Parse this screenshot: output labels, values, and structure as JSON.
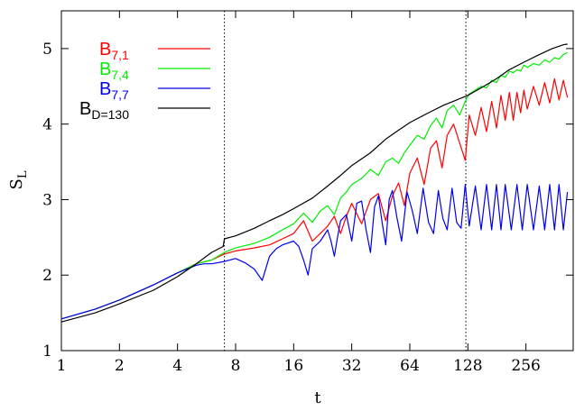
{
  "chart_data": {
    "type": "line",
    "title": "",
    "xlabel": "t",
    "ylabel_main": "S",
    "ylabel_sub": "L",
    "xscale": "log2",
    "xlim": [
      1,
      450
    ],
    "ylim": [
      1,
      5.5
    ],
    "xticks": [
      1,
      2,
      4,
      8,
      16,
      32,
      64,
      128,
      256
    ],
    "xtick_labels": [
      "1",
      "2",
      "4",
      "8",
      "16",
      "32",
      "64",
      "128",
      "256"
    ],
    "yticks": [
      1,
      2,
      3,
      4,
      5
    ],
    "ytick_labels": [
      "1",
      "2",
      "3",
      "4",
      "5"
    ],
    "vlines": [
      7,
      125
    ],
    "grid": false,
    "legend_position": "top-left",
    "series": [
      {
        "label_main": "B",
        "label_sub": "7,1",
        "color": "#ff0000",
        "x": [
          1,
          1.5,
          2,
          3,
          4,
          5,
          6,
          7,
          8,
          10,
          12,
          14,
          16,
          18,
          20,
          22,
          24,
          26,
          28,
          30,
          32,
          36,
          40,
          44,
          48,
          52,
          56,
          60,
          64,
          70,
          76,
          82,
          88,
          94,
          100,
          108,
          116,
          124,
          130,
          140,
          150,
          160,
          170,
          180,
          190,
          200,
          210,
          220,
          230,
          240,
          250,
          260,
          280,
          300,
          320,
          340,
          360,
          380,
          400,
          420
        ],
        "y": [
          1.42,
          1.55,
          1.67,
          1.87,
          2.03,
          2.15,
          2.2,
          2.28,
          2.32,
          2.36,
          2.4,
          2.48,
          2.55,
          2.72,
          2.45,
          2.55,
          2.65,
          2.78,
          2.55,
          2.78,
          2.95,
          2.68,
          3.0,
          3.08,
          2.72,
          3.05,
          3.22,
          2.92,
          3.35,
          3.55,
          3.2,
          3.68,
          3.78,
          3.42,
          3.85,
          4.0,
          3.75,
          3.52,
          4.12,
          3.85,
          4.22,
          3.9,
          4.3,
          3.95,
          4.38,
          4.05,
          4.42,
          4.05,
          4.42,
          4.15,
          4.45,
          4.2,
          4.5,
          4.25,
          4.55,
          4.28,
          4.6,
          4.32,
          4.58,
          4.35
        ]
      },
      {
        "label_main": "B",
        "label_sub": "7,4",
        "color": "#00ee00",
        "x": [
          1,
          1.5,
          2,
          3,
          4,
          5,
          6,
          7,
          8,
          10,
          12,
          14,
          16,
          18,
          20,
          22,
          24,
          26,
          28,
          30,
          32,
          36,
          40,
          44,
          48,
          52,
          56,
          60,
          64,
          70,
          76,
          82,
          88,
          94,
          100,
          108,
          116,
          124,
          130,
          140,
          150,
          160,
          170,
          180,
          190,
          200,
          210,
          220,
          230,
          240,
          250,
          260,
          280,
          300,
          320,
          340,
          360,
          380,
          400,
          420
        ],
        "y": [
          1.42,
          1.55,
          1.67,
          1.87,
          2.03,
          2.15,
          2.2,
          2.3,
          2.36,
          2.42,
          2.5,
          2.6,
          2.68,
          2.82,
          2.7,
          2.85,
          2.92,
          2.8,
          3.02,
          3.1,
          3.2,
          3.28,
          3.4,
          3.32,
          3.5,
          3.55,
          3.48,
          3.62,
          3.72,
          3.85,
          3.8,
          3.98,
          4.08,
          3.95,
          4.18,
          4.25,
          4.12,
          4.3,
          4.4,
          4.45,
          4.5,
          4.48,
          4.58,
          4.55,
          4.65,
          4.62,
          4.7,
          4.68,
          4.72,
          4.7,
          4.78,
          4.75,
          4.8,
          4.78,
          4.85,
          4.82,
          4.88,
          4.86,
          4.92,
          4.95
        ]
      },
      {
        "label_main": "B",
        "label_sub": "7,7",
        "color": "#0000ee",
        "x": [
          1,
          1.5,
          2,
          3,
          4,
          5,
          5.5,
          6,
          7,
          8,
          9,
          10,
          11,
          12,
          13,
          14,
          16,
          17,
          18,
          19,
          20,
          22,
          24,
          25,
          26,
          27,
          28,
          30,
          32,
          34,
          36,
          38,
          40,
          42,
          44,
          46,
          48,
          50,
          52,
          55,
          58,
          62,
          66,
          70,
          75,
          80,
          85,
          90,
          95,
          100,
          106,
          112,
          118,
          124,
          130,
          140,
          150,
          160,
          170,
          180,
          190,
          200,
          215,
          230,
          245,
          260,
          280,
          300,
          320,
          340,
          360,
          380,
          400,
          420
        ],
        "y": [
          1.42,
          1.55,
          1.67,
          1.87,
          2.03,
          2.13,
          2.15,
          2.15,
          2.18,
          2.22,
          2.16,
          2.08,
          1.93,
          2.25,
          2.35,
          2.4,
          2.45,
          2.38,
          2.2,
          2.0,
          2.35,
          2.45,
          2.6,
          2.45,
          2.25,
          2.5,
          2.72,
          2.8,
          2.45,
          2.95,
          2.98,
          2.6,
          2.3,
          2.9,
          3.05,
          2.7,
          2.4,
          3.0,
          3.12,
          2.75,
          2.45,
          3.1,
          2.85,
          2.55,
          3.15,
          2.7,
          2.55,
          3.12,
          2.75,
          2.6,
          3.15,
          2.7,
          2.62,
          3.2,
          2.65,
          3.18,
          2.6,
          3.2,
          2.6,
          3.2,
          2.6,
          3.2,
          2.6,
          3.2,
          2.6,
          3.2,
          2.6,
          3.18,
          2.6,
          3.2,
          2.6,
          3.2,
          2.6,
          3.1
        ]
      },
      {
        "label_main": "B",
        "label_sub": "D=130",
        "color": "#000000",
        "x": [
          1,
          1.5,
          2,
          3,
          4,
          5,
          6,
          6.9,
          7,
          8,
          10,
          12,
          14,
          16,
          20,
          24,
          28,
          32,
          40,
          48,
          56,
          64,
          80,
          96,
          112,
          128,
          150,
          180,
          210,
          250,
          300,
          350,
          400,
          420
        ],
        "y": [
          1.38,
          1.5,
          1.62,
          1.8,
          1.98,
          2.15,
          2.3,
          2.38,
          2.48,
          2.52,
          2.62,
          2.72,
          2.8,
          2.88,
          3.02,
          3.18,
          3.32,
          3.45,
          3.62,
          3.8,
          3.92,
          4.02,
          4.15,
          4.25,
          4.32,
          4.38,
          4.48,
          4.6,
          4.72,
          4.82,
          4.92,
          5.0,
          5.05,
          5.06
        ]
      }
    ]
  }
}
